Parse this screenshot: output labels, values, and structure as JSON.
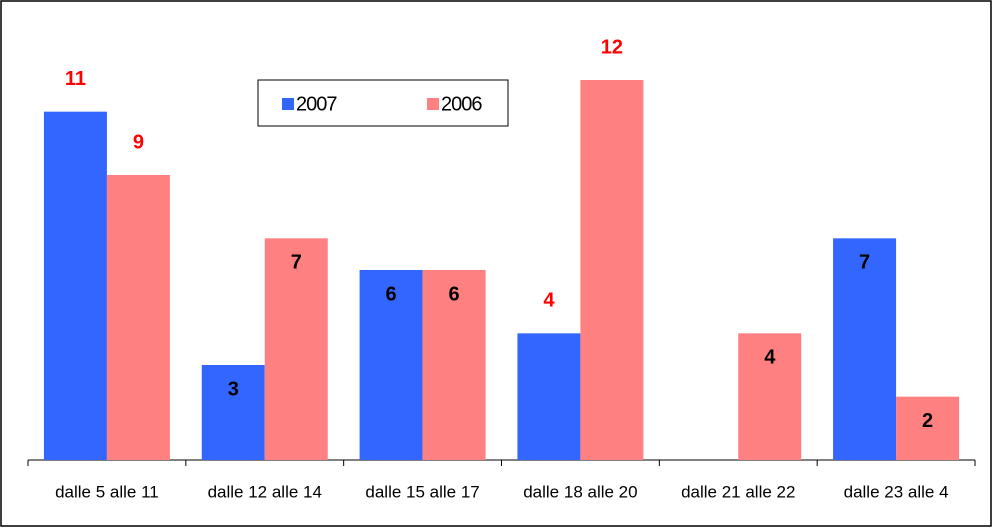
{
  "chart_data": {
    "type": "bar",
    "categories": [
      "dalle 5 alle 11",
      "dalle 12 alle 14",
      "dalle 15 alle 17",
      "dalle 18 alle 20",
      "dalle 21 alle 22",
      "dalle 23 alle 4"
    ],
    "series": [
      {
        "name": "2007",
        "color": "#3366ff",
        "values": [
          11,
          3,
          6,
          4,
          null,
          7
        ],
        "label_position": [
          "outside",
          "inside",
          "inside",
          "outside",
          null,
          "inside"
        ]
      },
      {
        "name": "2006",
        "color": "#ff8080",
        "values": [
          9,
          7,
          6,
          12,
          4,
          2
        ],
        "label_position": [
          "outside",
          "inside",
          "inside",
          "outside",
          "inside",
          "inside"
        ]
      }
    ],
    "ylim": [
      0,
      12
    ],
    "legend": "top-center"
  }
}
